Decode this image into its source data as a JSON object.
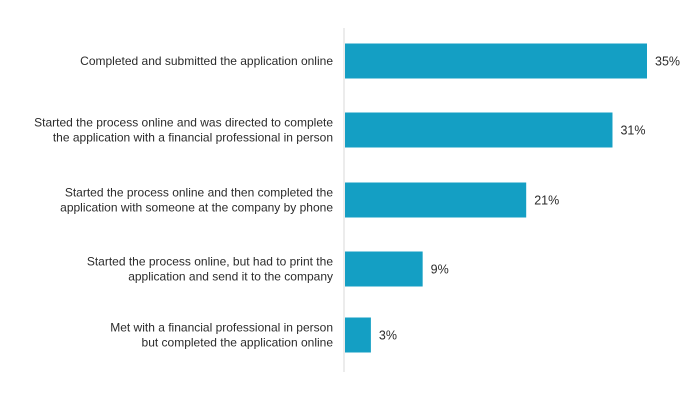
{
  "chart_data": {
    "type": "bar",
    "orientation": "horizontal",
    "categories": [
      [
        "Completed and submitted the application online"
      ],
      [
        "Started the process online and was directed to complete",
        "the application with a financial professional in person"
      ],
      [
        "Started the process online and then completed the",
        "application with someone at the company by phone"
      ],
      [
        "Started the process online, but had to print the",
        "application and send it to the company"
      ],
      [
        "Met with a financial professional in person",
        "but completed the application online"
      ]
    ],
    "values": [
      35,
      31,
      21,
      9,
      3
    ],
    "value_labels": [
      "35%",
      "31%",
      "21%",
      "9%",
      "3%"
    ],
    "xlim": [
      0,
      35
    ],
    "title": "",
    "xlabel": "",
    "ylabel": "",
    "grid": false,
    "legend": "none",
    "bar_color": "#149fc4",
    "axis_color": "#d9d9d9",
    "text_color": "#2b2b2b"
  }
}
